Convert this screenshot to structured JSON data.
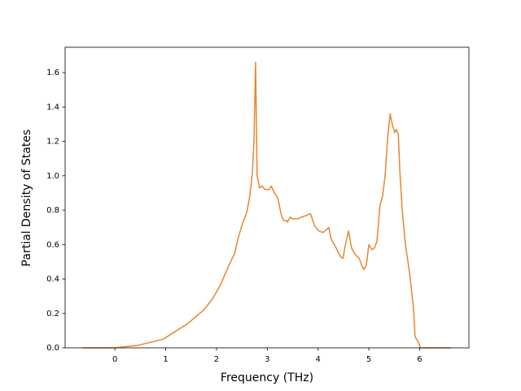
{
  "chart_data": {
    "type": "line",
    "x_label": "Frequency (THz)",
    "y_label": "Partial Density of States",
    "x": [
      -0.64,
      0,
      0.46,
      0.95,
      1.43,
      1.75,
      1.91,
      2.07,
      2.23,
      2.36,
      2.42,
      2.52,
      2.6,
      2.66,
      2.71,
      2.74,
      2.77,
      2.8,
      2.85,
      2.9,
      2.95,
      3.04,
      3.08,
      3.14,
      3.21,
      3.27,
      3.32,
      3.38,
      3.4,
      3.45,
      3.49,
      3.61,
      3.67,
      3.78,
      3.85,
      3.93,
      4.01,
      4.1,
      4.18,
      4.21,
      4.26,
      4.34,
      4.44,
      4.49,
      4.54,
      4.6,
      4.66,
      4.74,
      4.81,
      4.86,
      4.9,
      4.95,
      5.0,
      5.06,
      5.11,
      5.16,
      5.22,
      5.27,
      5.32,
      5.37,
      5.42,
      5.46,
      5.51,
      5.54,
      5.58,
      5.61,
      5.66,
      5.72,
      5.8,
      5.88,
      5.91,
      5.98,
      6.01,
      6.62
    ],
    "series": [
      {
        "color": "#e8872e",
        "values": [
          0,
          0,
          0.015,
          0.05,
          0.14,
          0.22,
          0.28,
          0.36,
          0.47,
          0.55,
          0.63,
          0.73,
          0.79,
          0.89,
          1.03,
          1.22,
          1.66,
          1.0,
          0.93,
          0.94,
          0.92,
          0.92,
          0.94,
          0.9,
          0.87,
          0.78,
          0.74,
          0.74,
          0.73,
          0.76,
          0.75,
          0.75,
          0.76,
          0.77,
          0.78,
          0.71,
          0.68,
          0.67,
          0.69,
          0.7,
          0.63,
          0.59,
          0.53,
          0.52,
          0.6,
          0.68,
          0.58,
          0.54,
          0.52,
          0.48,
          0.455,
          0.48,
          0.6,
          0.57,
          0.58,
          0.62,
          0.83,
          0.88,
          1.0,
          1.22,
          1.36,
          1.3,
          1.25,
          1.27,
          1.24,
          1.03,
          0.79,
          0.6,
          0.44,
          0.23,
          0.065,
          0.03,
          0,
          0
        ]
      }
    ],
    "xlim": [
      -0.98,
      6.97
    ],
    "ylim": [
      0,
      1.747
    ],
    "xticks": [
      0,
      1,
      2,
      3,
      4,
      5,
      6
    ],
    "yticks": [
      {
        "value": 0,
        "label": "0.0"
      },
      {
        "value": 0.2,
        "label": "0.2"
      },
      {
        "value": 0.4,
        "label": "0.4"
      },
      {
        "value": 0.6,
        "label": "0.6"
      },
      {
        "value": 0.8,
        "label": "0.8"
      },
      {
        "value": 1.0,
        "label": "1.0"
      },
      {
        "value": 1.2,
        "label": "1.2"
      },
      {
        "value": 1.4,
        "label": "1.4"
      },
      {
        "value": 1.6,
        "label": "1.6"
      }
    ],
    "grid": false
  }
}
